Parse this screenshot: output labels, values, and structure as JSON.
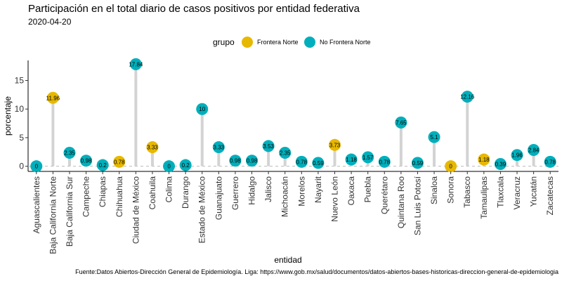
{
  "chart_data": {
    "type": "lollipop",
    "title": "Participación en el total diario de casos positivos por entidad federativa",
    "subtitle": "2020-04-20",
    "xlabel": "entidad",
    "ylabel": "porcentaje",
    "ylim": [
      -0.9,
      18.5
    ],
    "yticks": [
      0,
      5,
      10,
      15
    ],
    "legend": {
      "title": "grupo",
      "position": "top",
      "entries": [
        {
          "name": "Frontera Norte",
          "color": "#E7B800"
        },
        {
          "name": "No Frontera Norte",
          "color": "#00AFBB"
        }
      ]
    },
    "stem_color": "#d3d3d3",
    "baseline": "dashed",
    "categories": [
      "Aguascalientes",
      "Baja California Norte",
      "Baja California Sur",
      "Campeche",
      "Chiapas",
      "Chihuahua",
      "Ciudad de México",
      "Coahuila",
      "Colima",
      "Durango",
      "Estado de México",
      "Guanajuato",
      "Guerrero",
      "Hidalgo",
      "Jalisco",
      "Michoacán",
      "Morelos",
      "Nayarit",
      "Nuevo León",
      "Oaxaca",
      "Puebla",
      "Querétaro",
      "Quintana Roo",
      "San Luis Potosí",
      "Sinaloa",
      "Sonora",
      "Tabasco",
      "Tamaulipas",
      "Tlaxcala",
      "Veracruz",
      "Yucatán",
      "Zacatecas"
    ],
    "values": [
      0,
      11.96,
      2.35,
      0.98,
      0.2,
      0.78,
      17.84,
      3.33,
      0,
      0.2,
      10,
      3.33,
      0.98,
      0.98,
      3.53,
      2.35,
      0.78,
      0.59,
      3.73,
      1.18,
      1.57,
      0.78,
      7.65,
      0.59,
      5.1,
      0,
      12.16,
      1.18,
      0.39,
      1.96,
      2.84,
      0.78
    ],
    "labels": [
      "0",
      "11.96",
      "2.35",
      "0.98",
      "0.2",
      "0.78",
      "17.84",
      "3.33",
      "0",
      "0.2",
      "10",
      "3.33",
      "0.98",
      "0.98",
      "3.53",
      "2.35",
      "0.78",
      "0.59",
      "3.73",
      "1.18",
      "1.57",
      "0.78",
      "7.65",
      "0.59",
      "5.1",
      "0",
      "12.16",
      "1.18",
      "0.39",
      "1.96",
      "2.84",
      "0.78"
    ],
    "groups": [
      "No Frontera Norte",
      "Frontera Norte",
      "No Frontera Norte",
      "No Frontera Norte",
      "No Frontera Norte",
      "Frontera Norte",
      "No Frontera Norte",
      "Frontera Norte",
      "No Frontera Norte",
      "No Frontera Norte",
      "No Frontera Norte",
      "No Frontera Norte",
      "No Frontera Norte",
      "No Frontera Norte",
      "No Frontera Norte",
      "No Frontera Norte",
      "No Frontera Norte",
      "No Frontera Norte",
      "Frontera Norte",
      "No Frontera Norte",
      "No Frontera Norte",
      "No Frontera Norte",
      "No Frontera Norte",
      "No Frontera Norte",
      "No Frontera Norte",
      "Frontera Norte",
      "No Frontera Norte",
      "Frontera Norte",
      "No Frontera Norte",
      "No Frontera Norte",
      "No Frontera Norte",
      "No Frontera Norte"
    ],
    "caption": "Fuente:Datos Abiertos-Dirección General de Epidemiología. Liga: https://www.gob.mx/salud/documentos/datos-abiertos-bases-historicas-direccion-general-de-epidemiologia"
  }
}
